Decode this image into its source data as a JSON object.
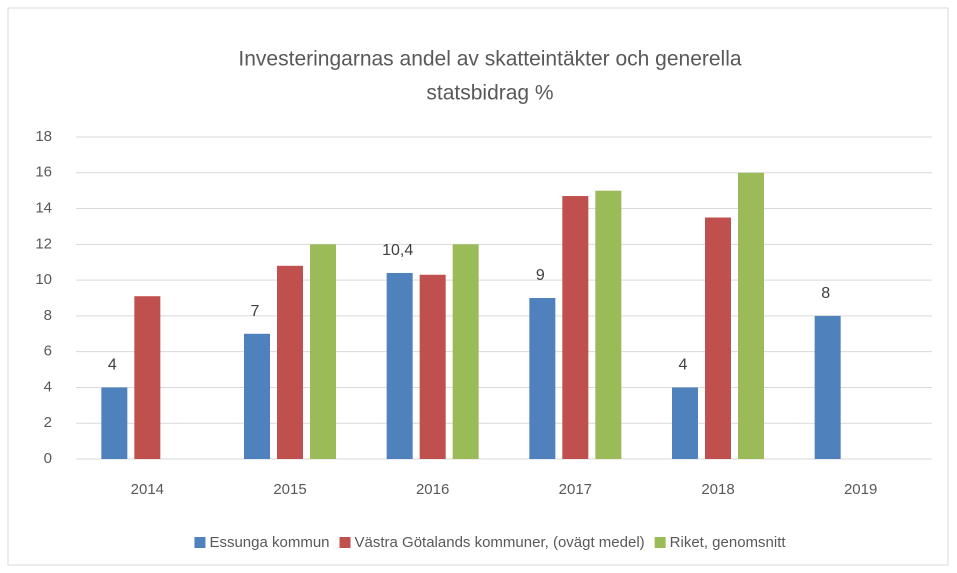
{
  "chart_data": {
    "type": "bar",
    "title": [
      "Investeringarnas andel av skatteintäkter och generella",
      "statsbidrag %"
    ],
    "categories": [
      "2014",
      "2015",
      "2016",
      "2017",
      "2018",
      "2019"
    ],
    "series": [
      {
        "name": "Essunga kommun",
        "color": "#4f81bd",
        "values": [
          4,
          7,
          10.4,
          9,
          4,
          8
        ],
        "value_labels": [
          "4",
          "7",
          "10,4",
          "9",
          "4",
          "8"
        ]
      },
      {
        "name": "Västra Götalands kommuner, (ovägt medel)",
        "color": "#c0504d",
        "values": [
          9.1,
          10.8,
          10.3,
          14.7,
          13.5,
          null
        ]
      },
      {
        "name": "Riket, genomsnitt",
        "color": "#9bbb59",
        "values": [
          null,
          12,
          12,
          15,
          16,
          null
        ]
      }
    ],
    "ylim": [
      0,
      18
    ],
    "yticks": [
      0,
      2,
      4,
      6,
      8,
      10,
      12,
      14,
      16,
      18
    ],
    "grid": true,
    "legend": "bottom"
  }
}
